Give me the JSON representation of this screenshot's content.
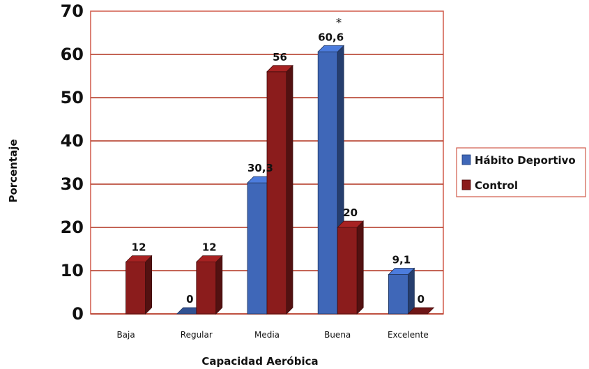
{
  "chart_data": {
    "type": "bar",
    "categories": [
      "Baja",
      "Regular",
      "Media",
      "Buena",
      "Excelente"
    ],
    "series": [
      {
        "name": "Hábito Deportivo",
        "values": [
          null,
          0,
          30.3,
          60.6,
          9.1
        ],
        "labels": [
          "",
          "0",
          "30,3",
          "60,6",
          "9,1"
        ],
        "color": "#3f67b8"
      },
      {
        "name": "Control",
        "values": [
          12,
          12,
          56,
          20,
          0
        ],
        "labels": [
          "12",
          "12",
          "56",
          "20",
          "0"
        ],
        "color": "#8b1c1c"
      }
    ],
    "xlabel": "Capacidad Aeróbica",
    "ylabel": "Porcentaje",
    "ylim": [
      0,
      70
    ],
    "yticks": [
      "0",
      "10",
      "20",
      "30",
      "40",
      "50",
      "60",
      "70"
    ],
    "annotation": {
      "text": "*",
      "category": "Buena"
    },
    "legend_position": "right",
    "grid": true,
    "colors": {
      "grid": "#b0321f",
      "axis": "#b0321f",
      "border": "#d05a4a"
    }
  }
}
